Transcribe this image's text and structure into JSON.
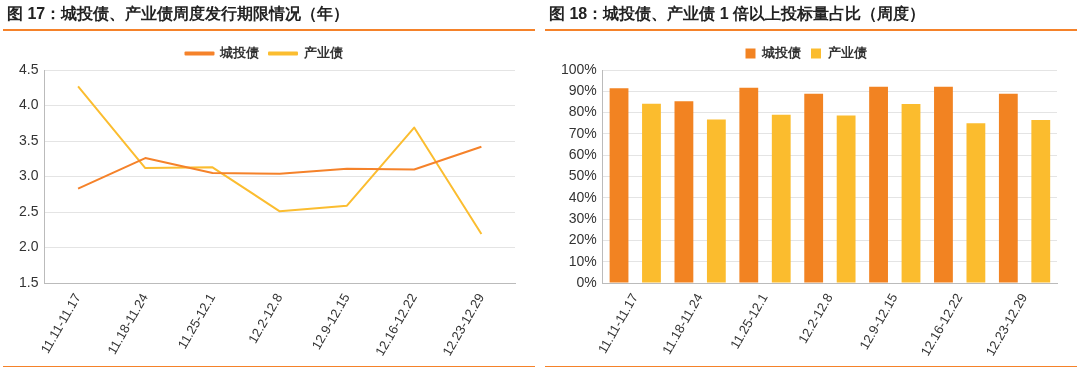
{
  "chart_data": [
    {
      "type": "line",
      "title": "图 17：城投债、产业债周度发行期限情况（年）",
      "categories": [
        "11.11-11.17",
        "11.18-11.24",
        "11.25-12.1",
        "12.2-12.8",
        "12.9-12.15",
        "12.16-12.22",
        "12.23-12.29"
      ],
      "series": [
        {
          "name": "城投债",
          "color": "#f5822a",
          "values": [
            2.83,
            3.26,
            3.05,
            3.04,
            3.11,
            3.1,
            3.42
          ]
        },
        {
          "name": "产业债",
          "color": "#fbbd30",
          "values": [
            4.27,
            3.12,
            3.13,
            2.51,
            2.59,
            3.69,
            2.19
          ]
        }
      ],
      "ylim": [
        1.5,
        4.5
      ],
      "yticks": [
        1.5,
        {
          "value": 2,
          "label": "2.0"
        },
        2.5,
        {
          "value": 3,
          "label": "3.0"
        },
        3.5,
        {
          "value": 4,
          "label": "4.0"
        },
        4.5
      ],
      "grid": "y",
      "legend": "top",
      "marker": "none"
    },
    {
      "type": "bar",
      "title": "图 18：城投债、产业债 1 倍以上投标量占比（周度）",
      "categories": [
        "11.11-11.17",
        "11.18-11.24",
        "11.25-12.1",
        "12.2-12.8",
        "12.9-12.15",
        "12.16-12.22",
        "12.23-12.29"
      ],
      "series": [
        {
          "name": "城投债",
          "color": "#f28322",
          "values": [
            91.4,
            85.3,
            91.7,
            88.8,
            92.1,
            92.1,
            88.8
          ]
        },
        {
          "name": "产业债",
          "color": "#fbbc2e",
          "values": [
            84.2,
            76.8,
            79.0,
            78.7,
            84.0,
            75.0,
            76.5
          ]
        }
      ],
      "ylim": [
        0,
        100
      ],
      "yticks": [
        {
          "value": 0,
          "label": "0%"
        },
        {
          "value": 10,
          "label": "10%"
        },
        {
          "value": 20,
          "label": "20%"
        },
        {
          "value": 30,
          "label": "30%"
        },
        {
          "value": 40,
          "label": "40%"
        },
        {
          "value": 50,
          "label": "50%"
        },
        {
          "value": 60,
          "label": "60%"
        },
        {
          "value": 70,
          "label": "70%"
        },
        {
          "value": 80,
          "label": "80%"
        },
        {
          "value": 90,
          "label": "90%"
        },
        {
          "value": 100,
          "label": "100%"
        }
      ],
      "grid": "y",
      "legend": "top"
    }
  ]
}
